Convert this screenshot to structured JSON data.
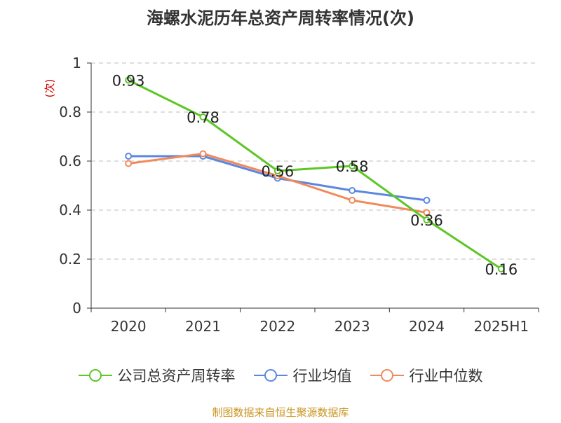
{
  "title": "海螺水泥历年总资产周转率情况(次)",
  "source": "制图数据来自恒生聚源数据库",
  "chart_data": {
    "type": "line",
    "categories": [
      "2020",
      "2021",
      "2022",
      "2023",
      "2024",
      "2025H1"
    ],
    "ylabel": "(次)",
    "ylim": [
      0,
      1
    ],
    "yticks": [
      "0",
      "0.2",
      "0.4",
      "0.6",
      "0.8",
      "1"
    ],
    "grid": true,
    "legend_position": "bottom",
    "series": [
      {
        "name": "公司总资产周转率",
        "color": "#5cc725",
        "values": [
          0.93,
          0.78,
          0.56,
          0.58,
          0.36,
          0.16
        ],
        "labels": [
          "0.93",
          "0.78",
          "0.56",
          "0.58",
          "0.36",
          "0.16"
        ]
      },
      {
        "name": "行业均值",
        "color": "#5b87e0",
        "values": [
          0.62,
          0.62,
          0.53,
          0.48,
          0.44,
          null
        ]
      },
      {
        "name": "行业中位数",
        "color": "#f2895b",
        "values": [
          0.59,
          0.63,
          0.54,
          0.44,
          0.39,
          null
        ]
      }
    ]
  }
}
